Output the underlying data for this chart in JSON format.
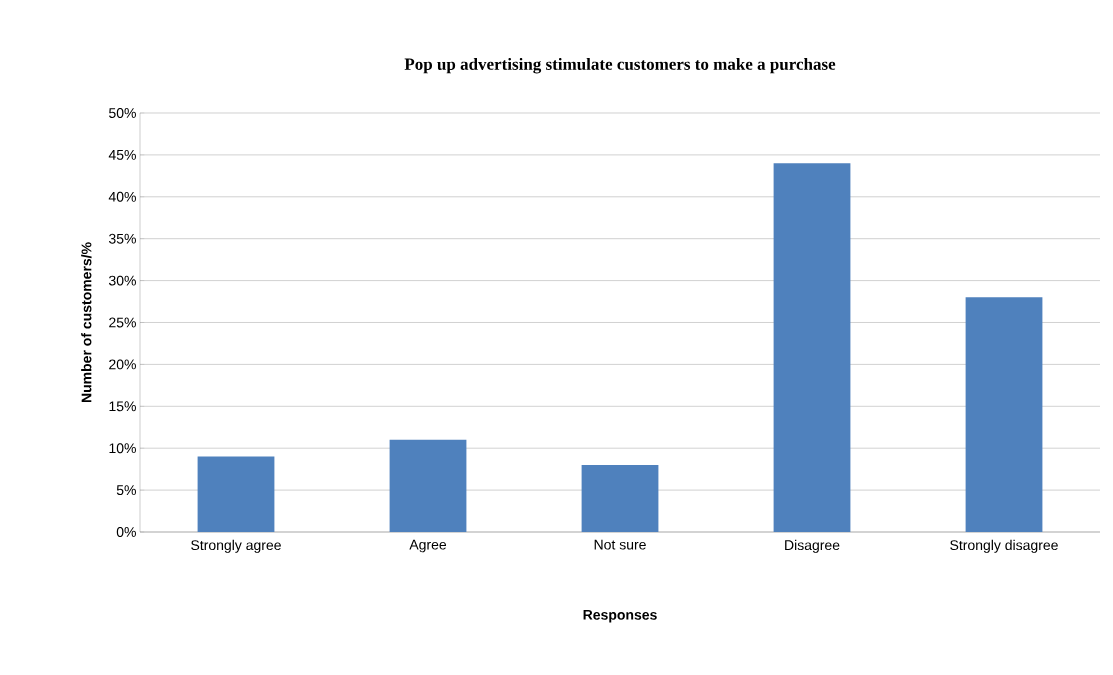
{
  "chart_data": {
    "type": "bar",
    "title": "Pop up advertising stimulate customers to make a purchase",
    "xlabel": "Responses",
    "ylabel": "Number of customers/%",
    "categories": [
      "Strongly agree",
      "Agree",
      "Not sure",
      "Disagree",
      "Strongly disagree"
    ],
    "values": [
      9,
      11,
      8,
      44,
      28
    ],
    "color": "#4f81bd",
    "ylim": [
      0,
      50
    ],
    "yticks": [
      {
        "value": 0,
        "label": "0%"
      },
      {
        "value": 5,
        "label": "5%"
      },
      {
        "value": 10,
        "label": "10%"
      },
      {
        "value": 15,
        "label": "15%"
      },
      {
        "value": 20,
        "label": "20%"
      },
      {
        "value": 25,
        "label": "25%"
      },
      {
        "value": 30,
        "label": "30%"
      },
      {
        "value": 35,
        "label": "35%"
      },
      {
        "value": 40,
        "label": "40%"
      },
      {
        "value": 45,
        "label": "45%"
      },
      {
        "value": 50,
        "label": "50%"
      }
    ],
    "grid": "y"
  }
}
